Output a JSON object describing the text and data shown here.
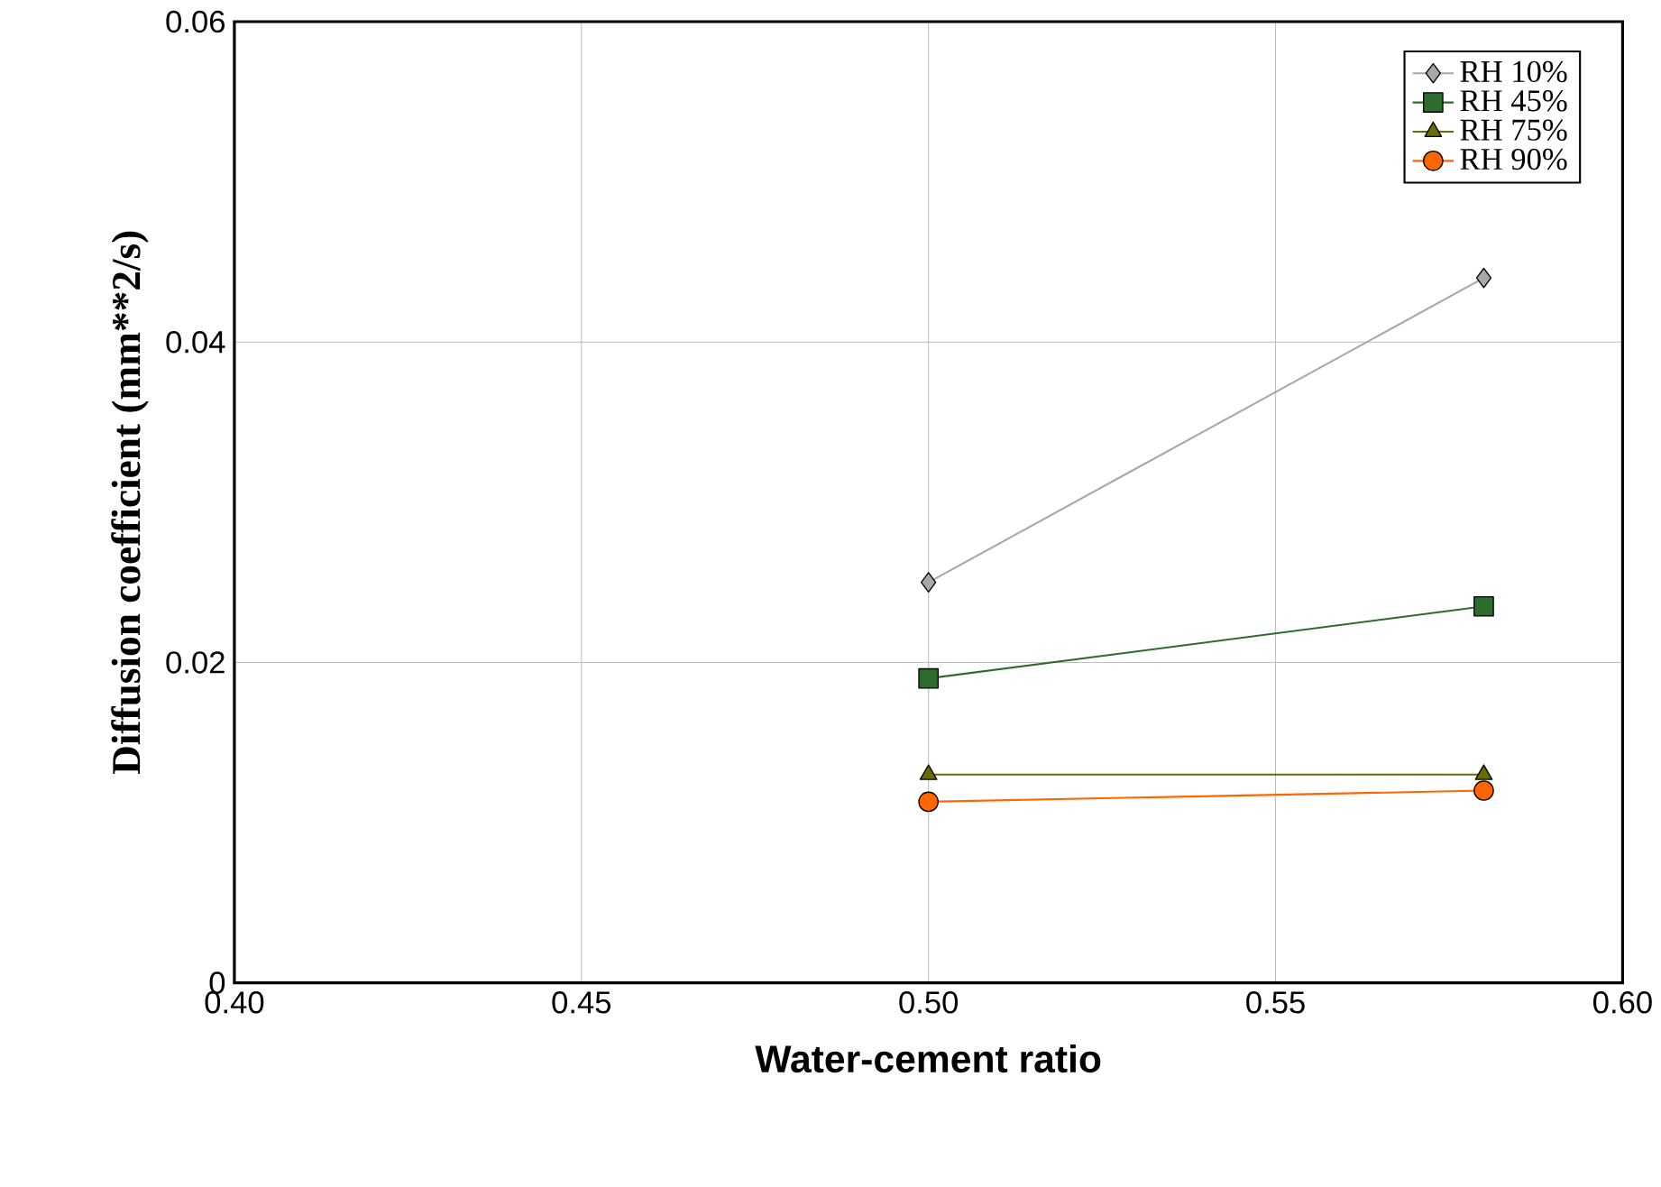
{
  "chart_data": {
    "type": "line",
    "xlabel": "Water-cement ratio",
    "ylabel": "Diffusion coefficient (mm**2/s)",
    "x": [
      0.5,
      0.58
    ],
    "series": [
      {
        "name": "RH 10%",
        "color": "#a8a8a8",
        "marker": "diamond",
        "values": [
          0.025,
          0.044
        ]
      },
      {
        "name": "RH 45%",
        "color": "#2e6b2e",
        "marker": "square",
        "values": [
          0.019,
          0.0235
        ]
      },
      {
        "name": "RH 75%",
        "color": "#6b6b00",
        "marker": "triangle",
        "values": [
          0.013,
          0.013
        ]
      },
      {
        "name": "RH 90%",
        "color": "#ff6600",
        "marker": "circle",
        "values": [
          0.0113,
          0.012
        ]
      }
    ],
    "xlim": [
      0.4,
      0.6
    ],
    "xticks": [
      {
        "value": 0.4,
        "label": "0.40"
      },
      {
        "value": 0.45,
        "label": "0.45"
      },
      {
        "value": 0.5,
        "label": "0.50"
      },
      {
        "value": 0.55,
        "label": "0.55"
      },
      {
        "value": 0.6,
        "label": "0.60"
      }
    ],
    "ylim": [
      0,
      0.06
    ],
    "yticks": [
      0,
      0.02,
      0.04,
      0.06
    ],
    "grid": true,
    "legend": "top right"
  }
}
